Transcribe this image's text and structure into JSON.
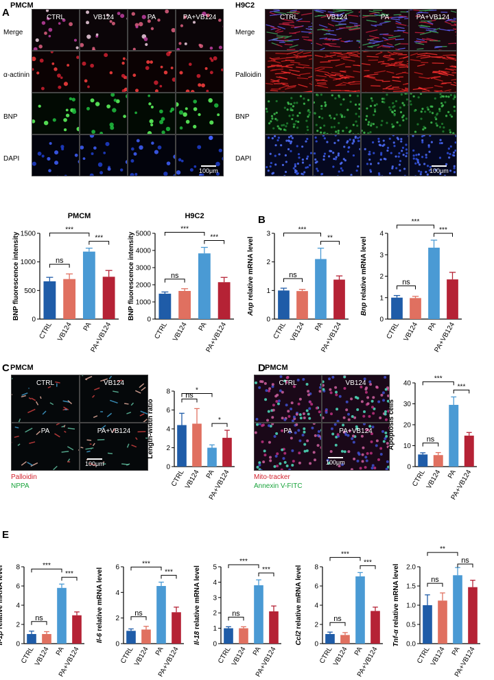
{
  "panels": {
    "A": "A",
    "B": "B",
    "C": "C",
    "D": "D",
    "E": "E"
  },
  "groups": [
    "CTRL",
    "VB124",
    "PA",
    "PA+VB124"
  ],
  "colors": {
    "CTRL": "#1f5ca8",
    "VB124": "#e07060",
    "PA": "#4a9ad4",
    "PA+VB124": "#b52235"
  },
  "panelA": {
    "left": {
      "cell": "PMCM",
      "rows": [
        "Merge",
        "α-actinin",
        "BNP",
        "DAPI"
      ],
      "scale": "100μm"
    },
    "right": {
      "cell": "H9C2",
      "rows": [
        "Merge",
        "Palloidin",
        "BNP",
        "DAPI"
      ],
      "scale": "100μm"
    }
  },
  "panelC": {
    "cell": "PMCM",
    "legend1": "Palloidin",
    "legend2": "NPPA",
    "scale": "100μm"
  },
  "panelD": {
    "cell": "PMCM",
    "legend1": "Mito-tracker",
    "legend2": "Annexin V-FITC",
    "scale": "100μm"
  },
  "chart_data": [
    {
      "id": "pmcm_bnp",
      "type": "bar",
      "title": "PMCM",
      "ylabel": "BNP fluorescence intensity",
      "categories": [
        "CTRL",
        "VB124",
        "PA",
        "PA+VB124"
      ],
      "values": [
        660,
        700,
        1180,
        740
      ],
      "errors": [
        70,
        90,
        60,
        110
      ],
      "ylim": [
        0,
        1500
      ],
      "ticks": [
        0,
        500,
        1000,
        1500
      ],
      "sig": [
        [
          "CTRL",
          "VB124",
          "ns"
        ],
        [
          "CTRL",
          "PA",
          "***"
        ],
        [
          "PA",
          "PA+VB124",
          "***"
        ]
      ]
    },
    {
      "id": "h9c2_bnp",
      "type": "bar",
      "title": "H9C2",
      "ylabel": "BNP fluorescence intensity",
      "categories": [
        "CTRL",
        "VB124",
        "PA",
        "PA+VB124"
      ],
      "values": [
        1480,
        1640,
        3830,
        2150
      ],
      "errors": [
        100,
        130,
        350,
        280
      ],
      "ylim": [
        0,
        5000
      ],
      "ticks": [
        0,
        1000,
        2000,
        3000,
        4000,
        5000
      ],
      "sig": [
        [
          "CTRL",
          "VB124",
          "ns"
        ],
        [
          "CTRL",
          "PA",
          "***"
        ],
        [
          "PA",
          "PA+VB124",
          "***"
        ]
      ]
    },
    {
      "id": "anp",
      "type": "bar",
      "title": "",
      "ylabel": "Anp relative mRNA level",
      "ylabel_italic": "Anp",
      "ylabel_rest": " relative mRNA level",
      "categories": [
        "CTRL",
        "VB124",
        "PA",
        "PA+VB124"
      ],
      "values": [
        1.0,
        0.98,
        2.1,
        1.38
      ],
      "errors": [
        0.08,
        0.06,
        0.38,
        0.13
      ],
      "ylim": [
        0,
        3
      ],
      "ticks": [
        0,
        1,
        2,
        3
      ],
      "sig": [
        [
          "CTRL",
          "VB124",
          "ns"
        ],
        [
          "CTRL",
          "PA",
          "***"
        ],
        [
          "PA",
          "PA+VB124",
          "**"
        ]
      ]
    },
    {
      "id": "bnp",
      "type": "bar",
      "title": "",
      "ylabel": "Bnp relative mRNA level",
      "ylabel_italic": "Bnp",
      "ylabel_rest": " relative mRNA level",
      "categories": [
        "CTRL",
        "VB124",
        "PA",
        "PA+VB124"
      ],
      "values": [
        1.0,
        0.98,
        3.33,
        1.85
      ],
      "errors": [
        0.1,
        0.08,
        0.35,
        0.33
      ],
      "ylim": [
        0,
        4
      ],
      "ticks": [
        0,
        1,
        2,
        3,
        4
      ],
      "sig": [
        [
          "CTRL",
          "VB124",
          "ns"
        ],
        [
          "CTRL",
          "PA",
          "***"
        ],
        [
          "PA",
          "PA+VB124",
          "***"
        ]
      ]
    },
    {
      "id": "lw",
      "type": "bar",
      "title": "",
      "ylabel": "Length-width ratio",
      "categories": [
        "CTRL",
        "VB124",
        "PA",
        "PA+VB124"
      ],
      "values": [
        4.4,
        4.55,
        2.0,
        3.05
      ],
      "errors": [
        1.25,
        1.6,
        0.3,
        0.8
      ],
      "ylim": [
        0,
        8
      ],
      "ticks": [
        0,
        2,
        4,
        6,
        8
      ],
      "sig": [
        [
          "CTRL",
          "VB124",
          "ns"
        ],
        [
          "CTRL",
          "PA",
          "*"
        ],
        [
          "PA",
          "PA+VB124",
          "*"
        ]
      ]
    },
    {
      "id": "apop",
      "type": "bar",
      "title": "",
      "ylabel": "Apoptosis cells",
      "categories": [
        "CTRL",
        "VB124",
        "PA",
        "PA+VB124"
      ],
      "values": [
        5.8,
        5.5,
        29.5,
        14.8
      ],
      "errors": [
        0.8,
        1.2,
        3.8,
        1.5
      ],
      "ylim": [
        0,
        40
      ],
      "ticks": [
        0,
        10,
        20,
        30,
        40
      ],
      "sig": [
        [
          "CTRL",
          "VB124",
          "ns"
        ],
        [
          "CTRL",
          "PA",
          "***"
        ],
        [
          "PA",
          "PA+VB124",
          "***"
        ]
      ]
    },
    {
      "id": "il1b",
      "type": "bar",
      "title": "",
      "ylabel": "Il-1β relative mRNA level",
      "ylabel_italic": "Il-1β",
      "ylabel_rest": " relative mRNA level",
      "categories": [
        "CTRL",
        "VB124",
        "PA",
        "PA+VB124"
      ],
      "values": [
        1.0,
        1.0,
        5.8,
        2.95
      ],
      "errors": [
        0.3,
        0.25,
        0.4,
        0.35
      ],
      "ylim": [
        0,
        8
      ],
      "ticks": [
        0,
        2,
        4,
        6,
        8
      ],
      "sig": [
        [
          "CTRL",
          "VB124",
          "ns"
        ],
        [
          "CTRL",
          "PA",
          "***"
        ],
        [
          "PA",
          "PA+VB124",
          "***"
        ]
      ]
    },
    {
      "id": "il6",
      "type": "bar",
      "title": "",
      "ylabel": "Il-6 relative mRNA level",
      "ylabel_italic": "Il-6",
      "ylabel_rest": " relative mRNA level",
      "categories": [
        "CTRL",
        "VB124",
        "PA",
        "PA+VB124"
      ],
      "values": [
        1.0,
        1.1,
        4.5,
        2.45
      ],
      "errors": [
        0.15,
        0.25,
        0.3,
        0.4
      ],
      "ylim": [
        0,
        6
      ],
      "ticks": [
        0,
        2,
        4,
        6
      ],
      "sig": [
        [
          "CTRL",
          "VB124",
          "ns"
        ],
        [
          "CTRL",
          "PA",
          "***"
        ],
        [
          "PA",
          "PA+VB124",
          "***"
        ]
      ]
    },
    {
      "id": "il18",
      "type": "bar",
      "title": "",
      "ylabel": "Il-18 relative mRNA level",
      "ylabel_italic": "Il-18",
      "ylabel_rest": " relative mRNA level",
      "categories": [
        "CTRL",
        "VB124",
        "PA",
        "PA+VB124"
      ],
      "values": [
        1.0,
        1.0,
        3.8,
        2.1
      ],
      "errors": [
        0.1,
        0.1,
        0.35,
        0.35
      ],
      "ylim": [
        0,
        5
      ],
      "ticks": [
        0,
        1,
        2,
        3,
        4,
        5
      ],
      "sig": [
        [
          "CTRL",
          "VB124",
          "ns"
        ],
        [
          "CTRL",
          "PA",
          "***"
        ],
        [
          "PA",
          "PA+VB124",
          "***"
        ]
      ]
    },
    {
      "id": "ccl2",
      "type": "bar",
      "title": "",
      "ylabel": "Ccl2 relative mRNA level",
      "ylabel_italic": "Ccl2",
      "ylabel_rest": " relative mRNA level",
      "categories": [
        "CTRL",
        "VB124",
        "PA",
        "PA+VB124"
      ],
      "values": [
        1.0,
        0.9,
        7.0,
        3.4
      ],
      "errors": [
        0.2,
        0.25,
        0.4,
        0.4
      ],
      "ylim": [
        0,
        8
      ],
      "ticks": [
        0,
        2,
        4,
        6,
        8
      ],
      "sig": [
        [
          "CTRL",
          "VB124",
          "ns"
        ],
        [
          "CTRL",
          "PA",
          "***"
        ],
        [
          "PA",
          "PA+VB124",
          "***"
        ]
      ]
    },
    {
      "id": "tnfa",
      "type": "bar",
      "title": "",
      "ylabel": "Tnf-α relative mRNA level",
      "ylabel_italic": "Tnf-α",
      "ylabel_rest": " relative mRNA level",
      "categories": [
        "CTRL",
        "VB124",
        "PA",
        "PA+VB124"
      ],
      "values": [
        1.0,
        1.12,
        1.78,
        1.47
      ],
      "errors": [
        0.27,
        0.2,
        0.2,
        0.18
      ],
      "ylim": [
        0,
        2.0
      ],
      "ticks": [
        0,
        0.5,
        1.0,
        1.5,
        2.0
      ],
      "tick_labels": [
        "0.0",
        "0.5",
        "1.0",
        "1.5",
        "2.0"
      ],
      "sig": [
        [
          "CTRL",
          "VB124",
          "ns"
        ],
        [
          "CTRL",
          "PA",
          "**"
        ],
        [
          "PA",
          "PA+VB124",
          "ns"
        ]
      ]
    }
  ]
}
